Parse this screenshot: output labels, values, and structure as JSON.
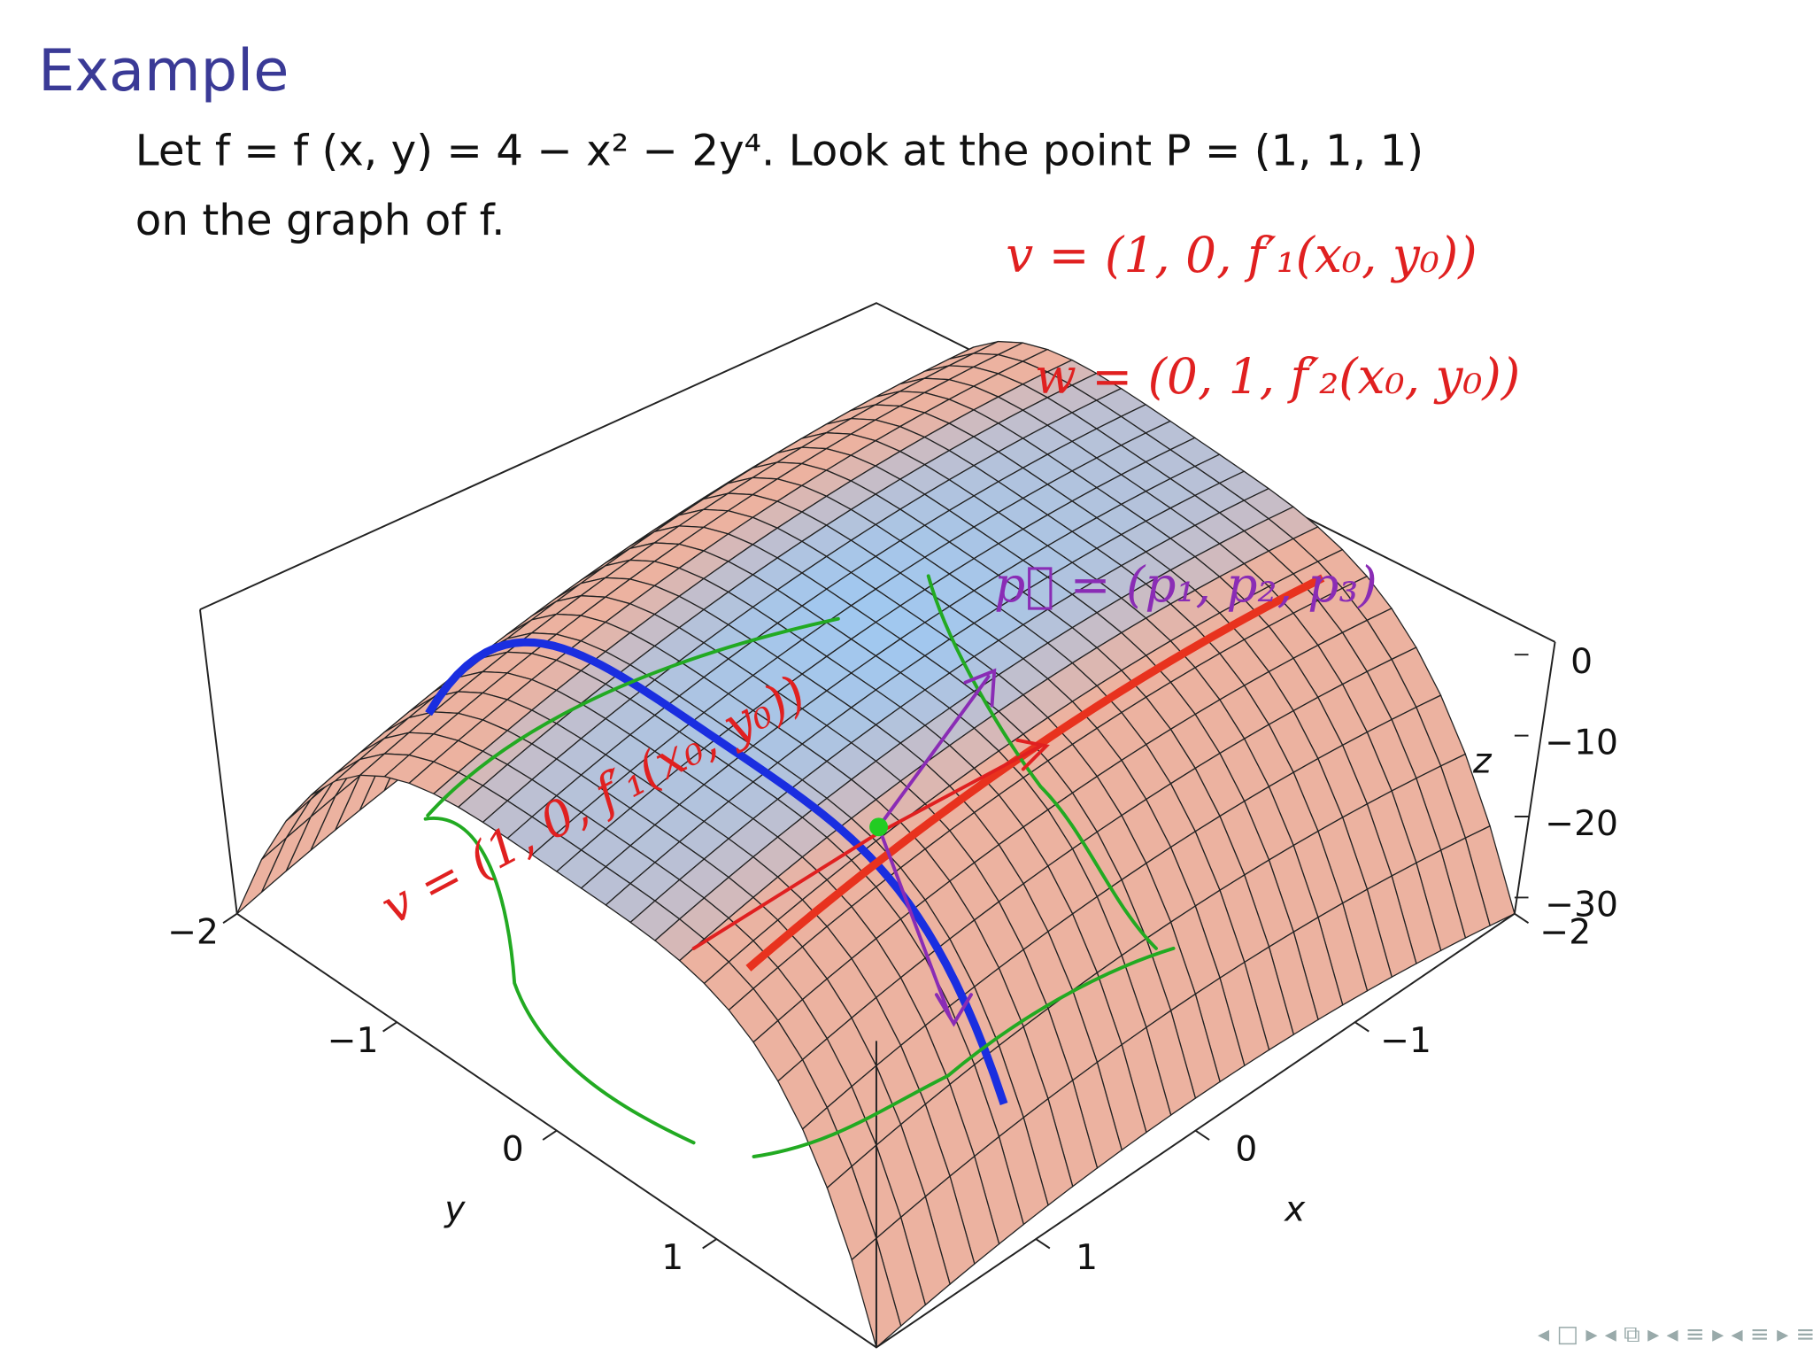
{
  "slide": {
    "title": "Example",
    "lines": [
      "Let f = f (x, y) = 4 − x² − 2y⁴. Look at the point P = (1, 1, 1)",
      "on the graph of f."
    ],
    "figure": {
      "xlabel": "x",
      "ylabel": "y",
      "zlabel": "z",
      "xticks": [
        {
          "value": -2,
          "label": "−2"
        },
        {
          "value": -1,
          "label": "−1"
        },
        0,
        1
      ],
      "yticks": [
        {
          "value": -2,
          "label": "−2"
        },
        {
          "value": -1,
          "label": "−1"
        },
        0,
        1
      ],
      "zticks": [
        0,
        {
          "value": -10,
          "label": "−10"
        },
        {
          "value": -20,
          "label": "−20"
        },
        {
          "value": -30,
          "label": "−30"
        }
      ]
    },
    "annotations": [
      "v = (1, 0, f′₁(x₀, y₀))",
      "w = (0, 1, f′₂(x₀, y₀))",
      "p⃗ = (p₁, p₂, p₃)",
      "v = (1, 0, f′₁(x₀, y₀))"
    ]
  }
}
